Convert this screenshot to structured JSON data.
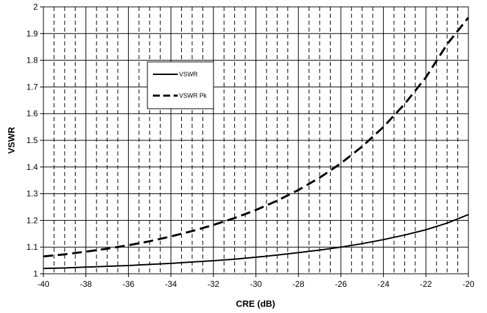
{
  "chart_data": {
    "type": "line",
    "title": "",
    "xlabel": "CRE (dB)",
    "ylabel": "VSWR",
    "xlim": [
      -40,
      -20
    ],
    "ylim": [
      1,
      2
    ],
    "x_ticks": [
      -40,
      -38,
      -36,
      -34,
      -32,
      -30,
      -28,
      -26,
      -24,
      -22,
      -20
    ],
    "x_tick_labels": [
      "-40",
      "-38",
      "-36",
      "-34",
      "-32",
      "-30",
      "-28",
      "-26",
      "-24",
      "-22",
      "-20"
    ],
    "y_ticks": [
      1,
      1.1,
      1.2,
      1.3,
      1.4,
      1.5,
      1.6,
      1.7,
      1.8,
      1.9,
      2
    ],
    "y_tick_labels": [
      "1",
      "1.1",
      "1.2",
      "1.3",
      "1.4",
      "1.5",
      "1.6",
      "1.7",
      "1.8",
      "1.9",
      "2"
    ],
    "grid": true,
    "legend_position": "upper-left-center",
    "x": [
      -40,
      -39,
      -38,
      -37,
      -36,
      -35,
      -34,
      -33,
      -32,
      -31,
      -30,
      -29,
      -28,
      -27,
      -26,
      -25,
      -24,
      -23,
      -22,
      -21,
      -20
    ],
    "series": [
      {
        "name": "VSWR",
        "style": "solid",
        "color": "#000000",
        "values": [
          1.02,
          1.022,
          1.025,
          1.028,
          1.031,
          1.035,
          1.039,
          1.044,
          1.049,
          1.055,
          1.062,
          1.07,
          1.079,
          1.089,
          1.1,
          1.113,
          1.128,
          1.145,
          1.165,
          1.19,
          1.222
        ]
      },
      {
        "name": "VSWR Pk",
        "style": "dashed",
        "color": "#000000",
        "values": [
          1.065,
          1.073,
          1.083,
          1.094,
          1.107,
          1.122,
          1.14,
          1.16,
          1.183,
          1.209,
          1.239,
          1.274,
          1.314,
          1.36,
          1.414,
          1.477,
          1.55,
          1.636,
          1.736,
          1.86,
          1.96
        ]
      }
    ]
  }
}
